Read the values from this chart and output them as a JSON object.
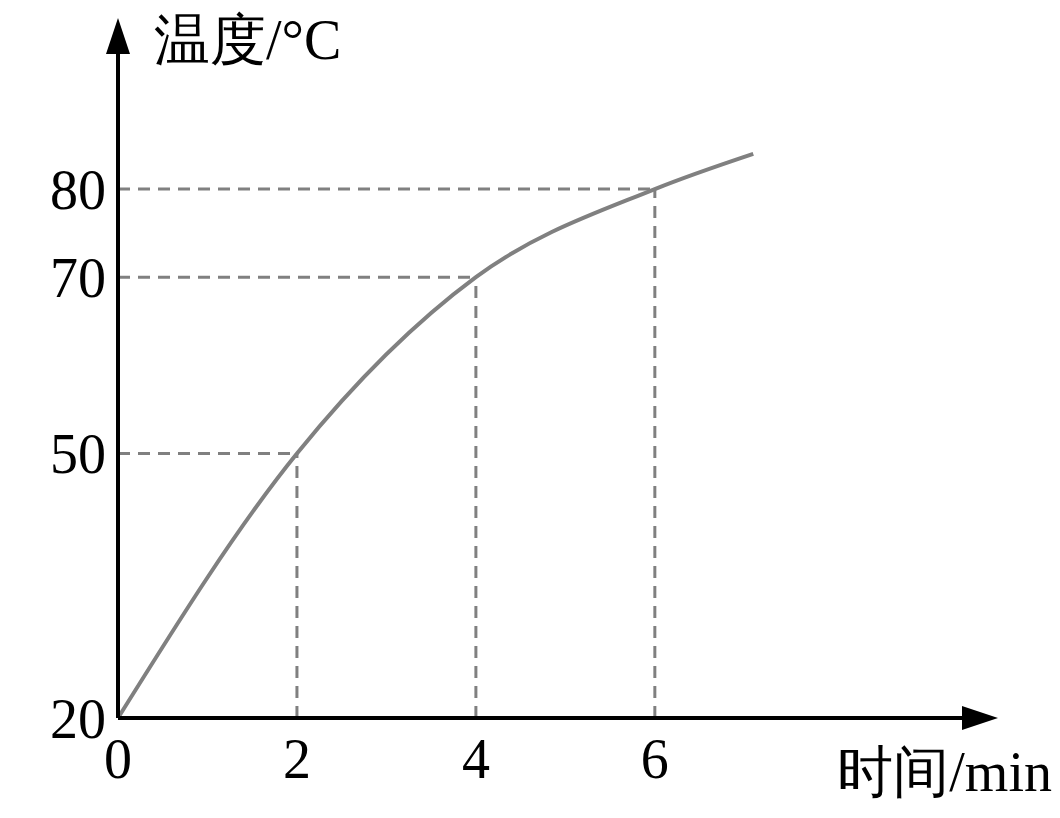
{
  "chart_data": {
    "type": "line",
    "xlabel": "时间/min",
    "ylabel": "温度/°C",
    "x": [
      0,
      2,
      4,
      6,
      7.1
    ],
    "series": [
      {
        "color": "#808080",
        "values": [
          20,
          50,
          70,
          80,
          84
        ]
      }
    ],
    "xlim": [
      0,
      9.5
    ],
    "ylim": [
      20,
      96
    ],
    "xticks": [
      0,
      2,
      4,
      6
    ],
    "yticks": [
      20,
      50,
      70,
      80
    ],
    "ref_lines": [
      {
        "axis": "x",
        "value": 2,
        "line_style": "dashed",
        "color": "#808080"
      },
      {
        "axis": "x",
        "value": 4,
        "line_style": "dashed",
        "color": "#808080"
      },
      {
        "axis": "x",
        "value": 6,
        "line_style": "dashed",
        "color": "#808080"
      },
      {
        "axis": "y",
        "value": 50,
        "line_style": "dashed",
        "color": "#808080"
      },
      {
        "axis": "y",
        "value": 70,
        "line_style": "dashed",
        "color": "#808080"
      },
      {
        "axis": "y",
        "value": 80,
        "line_style": "dashed",
        "color": "#808080"
      }
    ],
    "grid": false,
    "legend": false,
    "marker": "none",
    "line_style": "solid"
  }
}
